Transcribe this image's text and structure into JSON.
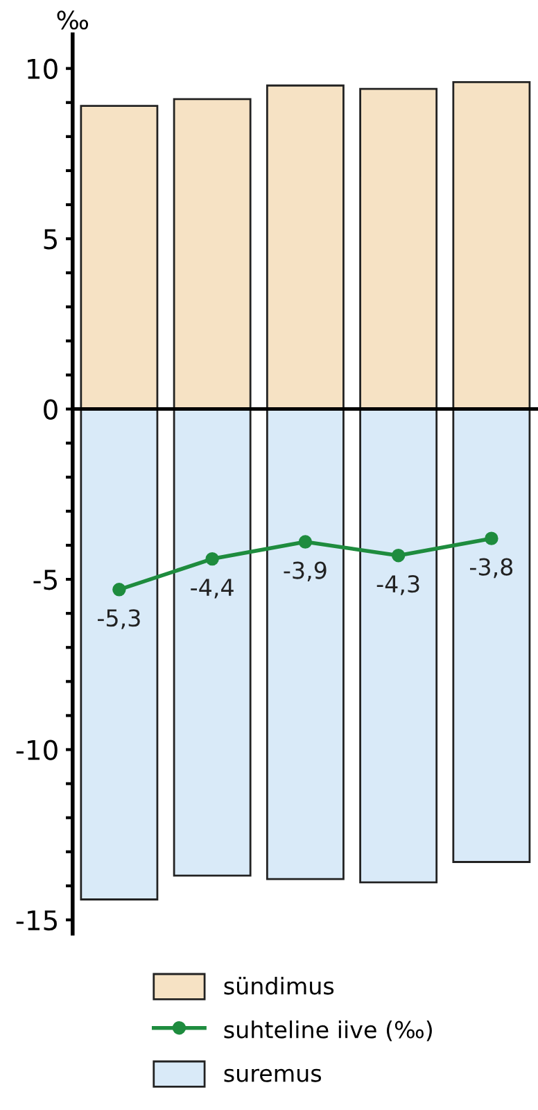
{
  "chart_data": {
    "type": "bar",
    "stacked": true,
    "ylabel": "‰",
    "categories": [
      null,
      null,
      null,
      null,
      null
    ],
    "series": [
      {
        "name": "sündimus",
        "color": "#f6e2c4",
        "values": [
          8.9,
          9.1,
          9.5,
          9.4,
          9.6
        ]
      },
      {
        "name": "suhteline iive (‰)",
        "type": "line",
        "color": "#1e8c3e",
        "values": [
          -5.3,
          -4.4,
          -3.9,
          -4.3,
          -3.8
        ],
        "value_labels": [
          "-5,3",
          "-4,4",
          "-3,9",
          "-4,3",
          "-3,8"
        ]
      },
      {
        "name": "suremus",
        "color": "#d9eaf8",
        "values": [
          -14.4,
          -13.7,
          -13.8,
          -13.9,
          -13.3
        ]
      }
    ],
    "ylim": [
      -15.4,
      11
    ],
    "yticks": [
      {
        "value": -15,
        "label": "-15"
      },
      {
        "value": -14,
        "label": null
      },
      {
        "value": -13,
        "label": null
      },
      {
        "value": -12,
        "label": null
      },
      {
        "value": -11,
        "label": null
      },
      {
        "value": -10,
        "label": "-10"
      },
      {
        "value": -9,
        "label": null
      },
      {
        "value": -8,
        "label": null
      },
      {
        "value": -7,
        "label": null
      },
      {
        "value": -6,
        "label": null
      },
      {
        "value": -5,
        "label": "-5"
      },
      {
        "value": -4,
        "label": null
      },
      {
        "value": -3,
        "label": null
      },
      {
        "value": -2,
        "label": null
      },
      {
        "value": -1,
        "label": null
      },
      0,
      {
        "value": 1,
        "label": null
      },
      {
        "value": 2,
        "label": null
      },
      {
        "value": 3,
        "label": null
      },
      {
        "value": 4,
        "label": null
      },
      5,
      {
        "value": 6,
        "label": null
      },
      {
        "value": 7,
        "label": null
      },
      {
        "value": 8,
        "label": null
      },
      {
        "value": 9,
        "label": null
      },
      10
    ],
    "marker": "circle",
    "line_style": "solid",
    "legend": "bottom"
  }
}
